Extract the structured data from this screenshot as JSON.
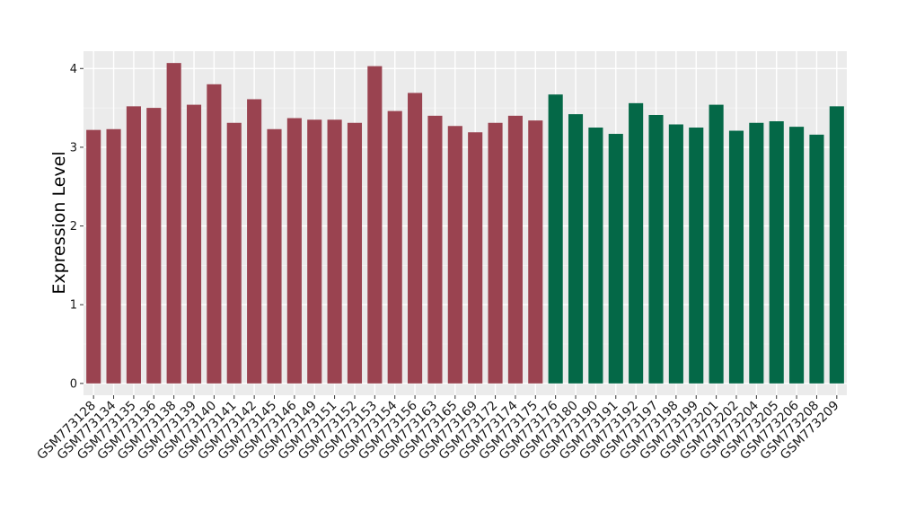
{
  "chart_data": {
    "type": "bar",
    "ylabel": "Expression Level",
    "xlabel": "",
    "ylim": [
      -0.15,
      4.22
    ],
    "yticks": [
      0,
      1,
      2,
      3,
      4
    ],
    "grid": true,
    "background": "#ebebeb",
    "categories": [
      "GSM773128",
      "GSM773134",
      "GSM773135",
      "GSM773136",
      "GSM773138",
      "GSM773139",
      "GSM773140",
      "GSM773141",
      "GSM773142",
      "GSM773145",
      "GSM773146",
      "GSM773149",
      "GSM773151",
      "GSM773152",
      "GSM773153",
      "GSM773154",
      "GSM773156",
      "GSM773163",
      "GSM773165",
      "GSM773169",
      "GSM773172",
      "GSM773174",
      "GSM773175",
      "GSM773176",
      "GSM773180",
      "GSM773190",
      "GSM773191",
      "GSM773192",
      "GSM773197",
      "GSM773198",
      "GSM773199",
      "GSM773201",
      "GSM773202",
      "GSM773204",
      "GSM773205",
      "GSM773206",
      "GSM773208",
      "GSM773209"
    ],
    "values": [
      3.22,
      3.23,
      3.52,
      3.5,
      4.07,
      3.54,
      3.8,
      3.31,
      3.61,
      3.23,
      3.37,
      3.35,
      3.35,
      3.31,
      4.03,
      3.46,
      3.69,
      3.4,
      3.27,
      3.19,
      3.31,
      3.4,
      3.34,
      3.67,
      3.42,
      3.25,
      3.17,
      3.56,
      3.41,
      3.29,
      3.25,
      3.54,
      3.21,
      3.31,
      3.33,
      3.26,
      3.16,
      3.52
    ],
    "groups": [
      0,
      0,
      0,
      0,
      0,
      0,
      0,
      0,
      0,
      0,
      0,
      0,
      0,
      0,
      0,
      0,
      0,
      0,
      0,
      0,
      0,
      0,
      0,
      1,
      1,
      1,
      1,
      1,
      1,
      1,
      1,
      1,
      1,
      1,
      1,
      1,
      1,
      1
    ],
    "group_colors": [
      "#9a4350",
      "#046847"
    ]
  }
}
